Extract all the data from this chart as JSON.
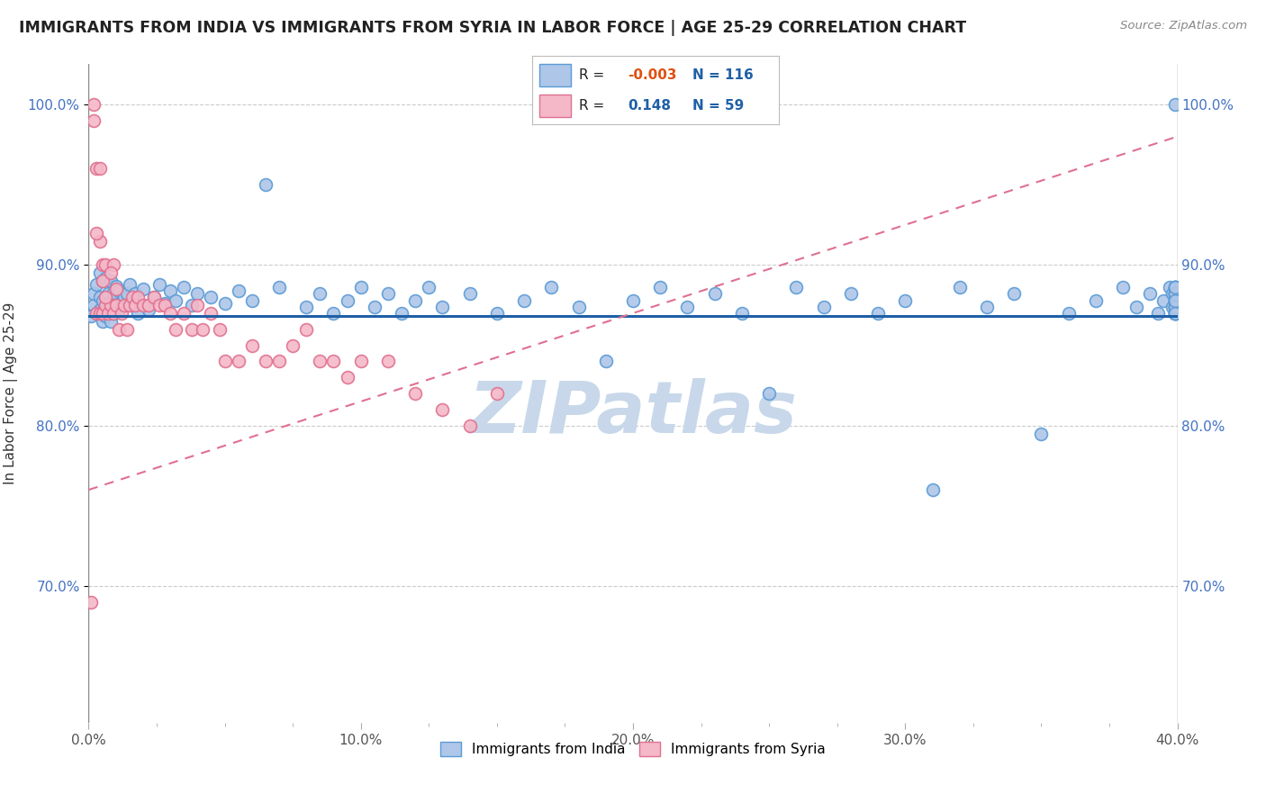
{
  "title": "IMMIGRANTS FROM INDIA VS IMMIGRANTS FROM SYRIA IN LABOR FORCE | AGE 25-29 CORRELATION CHART",
  "source": "Source: ZipAtlas.com",
  "ylabel": "In Labor Force | Age 25-29",
  "xlim": [
    0.0,
    0.4
  ],
  "ylim": [
    0.615,
    1.025
  ],
  "xtick_labels": [
    "0.0%",
    "",
    "",
    "",
    "10.0%",
    "",
    "",
    "",
    "20.0%",
    "",
    "",
    "",
    "30.0%",
    "",
    "",
    "",
    "40.0%"
  ],
  "xtick_vals": [
    0.0,
    0.025,
    0.05,
    0.075,
    0.1,
    0.125,
    0.15,
    0.175,
    0.2,
    0.225,
    0.25,
    0.275,
    0.3,
    0.325,
    0.35,
    0.375,
    0.4
  ],
  "ytick_labels": [
    "70.0%",
    "80.0%",
    "90.0%",
    "100.0%"
  ],
  "ytick_vals": [
    0.7,
    0.8,
    0.9,
    1.0
  ],
  "india_color": "#aec6e8",
  "india_edge": "#5b9bd5",
  "syria_color": "#f4b8c8",
  "syria_edge": "#e07090",
  "india_line_color": "#1f5fa6",
  "syria_line_color": "#e07090",
  "watermark": "ZIPatlas",
  "watermark_color": "#c8d8ea",
  "india_R": -0.003,
  "india_N": 116,
  "syria_R": 0.148,
  "syria_N": 59,
  "india_trend_y_at_0": 0.868,
  "india_trend_y_at_40": 0.868,
  "syria_trend_y_at_0": 0.76,
  "syria_trend_y_at_40": 0.98,
  "india_x": [
    0.001,
    0.002,
    0.002,
    0.003,
    0.003,
    0.004,
    0.004,
    0.004,
    0.005,
    0.005,
    0.005,
    0.006,
    0.006,
    0.006,
    0.007,
    0.007,
    0.007,
    0.008,
    0.008,
    0.008,
    0.009,
    0.009,
    0.01,
    0.01,
    0.011,
    0.011,
    0.012,
    0.013,
    0.014,
    0.015,
    0.016,
    0.017,
    0.018,
    0.02,
    0.022,
    0.024,
    0.026,
    0.028,
    0.03,
    0.032,
    0.035,
    0.038,
    0.04,
    0.045,
    0.05,
    0.055,
    0.06,
    0.065,
    0.07,
    0.08,
    0.085,
    0.09,
    0.095,
    0.1,
    0.105,
    0.11,
    0.115,
    0.12,
    0.125,
    0.13,
    0.14,
    0.15,
    0.16,
    0.17,
    0.18,
    0.19,
    0.2,
    0.21,
    0.22,
    0.23,
    0.24,
    0.25,
    0.26,
    0.27,
    0.28,
    0.29,
    0.3,
    0.31,
    0.32,
    0.33,
    0.34,
    0.35,
    0.36,
    0.37,
    0.38,
    0.385,
    0.39,
    0.393,
    0.395,
    0.397,
    0.398,
    0.398,
    0.399,
    0.399,
    0.399,
    0.399,
    0.399,
    0.399,
    0.399,
    0.399,
    0.399,
    0.399,
    0.399,
    0.399,
    0.399,
    0.399,
    0.399,
    0.399,
    0.399,
    0.399,
    0.399,
    0.399,
    0.399,
    0.399,
    0.399,
    0.399
  ],
  "india_y": [
    0.868,
    0.875,
    0.882,
    0.87,
    0.888,
    0.872,
    0.88,
    0.895,
    0.865,
    0.878,
    0.89,
    0.868,
    0.88,
    0.892,
    0.87,
    0.882,
    0.875,
    0.865,
    0.877,
    0.89,
    0.87,
    0.883,
    0.875,
    0.887,
    0.872,
    0.884,
    0.876,
    0.88,
    0.882,
    0.888,
    0.875,
    0.882,
    0.87,
    0.885,
    0.872,
    0.88,
    0.888,
    0.876,
    0.884,
    0.878,
    0.886,
    0.875,
    0.882,
    0.88,
    0.876,
    0.884,
    0.878,
    0.95,
    0.886,
    0.874,
    0.882,
    0.87,
    0.878,
    0.886,
    0.874,
    0.882,
    0.87,
    0.878,
    0.886,
    0.874,
    0.882,
    0.87,
    0.878,
    0.886,
    0.874,
    0.84,
    0.878,
    0.886,
    0.874,
    0.882,
    0.87,
    0.82,
    0.886,
    0.874,
    0.882,
    0.87,
    0.878,
    0.76,
    0.886,
    0.874,
    0.882,
    0.795,
    0.87,
    0.878,
    0.886,
    0.874,
    0.882,
    0.87,
    0.878,
    0.886,
    0.874,
    0.882,
    0.87,
    0.878,
    0.886,
    0.874,
    0.882,
    0.87,
    0.878,
    0.886,
    0.874,
    0.882,
    0.87,
    0.878,
    0.886,
    0.874,
    0.882,
    0.87,
    0.878,
    0.886,
    0.874,
    0.882,
    0.87,
    0.878,
    0.886,
    1.0
  ],
  "syria_x": [
    0.001,
    0.002,
    0.003,
    0.003,
    0.004,
    0.004,
    0.004,
    0.005,
    0.005,
    0.006,
    0.006,
    0.007,
    0.008,
    0.009,
    0.009,
    0.01,
    0.011,
    0.012,
    0.013,
    0.014,
    0.015,
    0.016,
    0.017,
    0.018,
    0.02,
    0.022,
    0.024,
    0.026,
    0.028,
    0.03,
    0.032,
    0.035,
    0.038,
    0.04,
    0.042,
    0.045,
    0.048,
    0.05,
    0.055,
    0.06,
    0.065,
    0.07,
    0.075,
    0.08,
    0.085,
    0.09,
    0.095,
    0.1,
    0.11,
    0.12,
    0.13,
    0.14,
    0.15,
    0.002,
    0.003,
    0.005,
    0.006,
    0.008,
    0.01
  ],
  "syria_y": [
    0.69,
    1.0,
    0.87,
    0.96,
    0.96,
    0.87,
    0.915,
    0.87,
    0.9,
    0.875,
    0.9,
    0.87,
    0.875,
    0.9,
    0.87,
    0.875,
    0.86,
    0.87,
    0.875,
    0.86,
    0.875,
    0.88,
    0.875,
    0.88,
    0.875,
    0.875,
    0.88,
    0.875,
    0.875,
    0.87,
    0.86,
    0.87,
    0.86,
    0.875,
    0.86,
    0.87,
    0.86,
    0.84,
    0.84,
    0.85,
    0.84,
    0.84,
    0.85,
    0.86,
    0.84,
    0.84,
    0.83,
    0.84,
    0.84,
    0.82,
    0.81,
    0.8,
    0.82,
    0.99,
    0.92,
    0.89,
    0.88,
    0.895,
    0.885
  ]
}
